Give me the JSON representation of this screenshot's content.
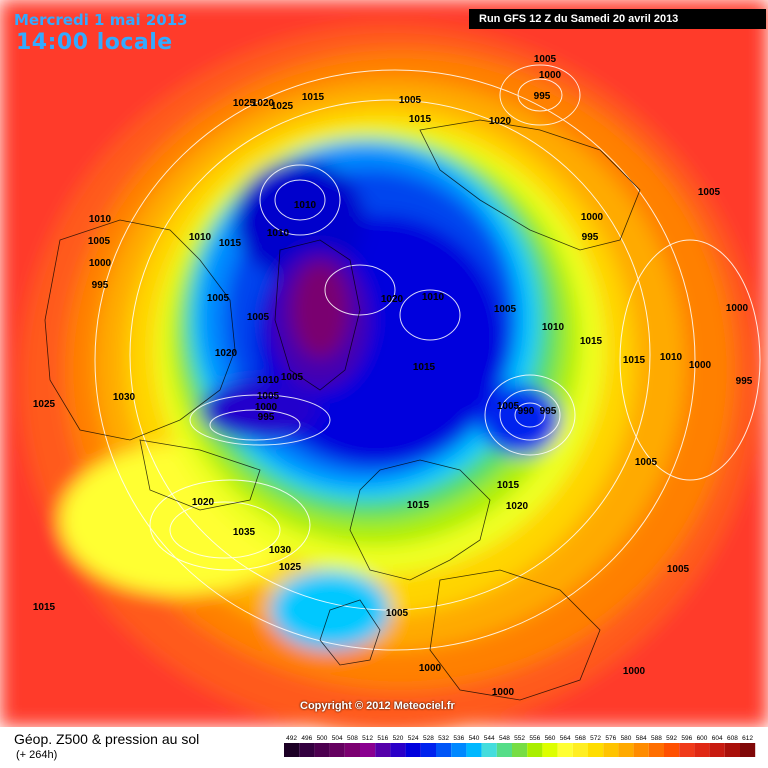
{
  "header": {
    "date": "Mercredi 1 mai 2013",
    "time": "14:00 locale",
    "run": "Run GFS 12 Z du Samedi 20 avril 2013"
  },
  "copyright": "Copyright © 2012 Meteociel.fr",
  "footer": {
    "title": "Géop. Z500 & pression au sol",
    "subtitle": "(+ 264h)"
  },
  "legend": {
    "ticks": [
      "492",
      "496",
      "500",
      "504",
      "508",
      "512",
      "516",
      "520",
      "524",
      "528",
      "532",
      "536",
      "540",
      "544",
      "548",
      "552",
      "556",
      "560",
      "564",
      "568",
      "572",
      "576",
      "580",
      "584",
      "588",
      "592",
      "596",
      "600",
      "604",
      "608",
      "612"
    ],
    "colors": [
      "#1c0025",
      "#33003f",
      "#4c004f",
      "#65005f",
      "#7c0070",
      "#8a0090",
      "#5500aa",
      "#2a00c8",
      "#0000dd",
      "#0022ee",
      "#0055f7",
      "#0088ff",
      "#00b8ff",
      "#44dddd",
      "#55dd88",
      "#77dd44",
      "#aaee00",
      "#ddff00",
      "#ffff33",
      "#ffee22",
      "#ffdd00",
      "#ffc400",
      "#ffaa00",
      "#ff8c00",
      "#ff6e00",
      "#ff5000",
      "#f03a1a",
      "#e02814",
      "#c81b10",
      "#aa100a",
      "#800808"
    ]
  },
  "pressure_labels": [
    "1010",
    "1005",
    "1000",
    "995",
    "1020",
    "1025",
    "1015",
    "1005",
    "1015",
    "1020",
    "1005",
    "1000",
    "995",
    "1010",
    "1010",
    "1015",
    "1010",
    "1005",
    "1005",
    "1025",
    "1030",
    "1020",
    "1010",
    "1005",
    "1000",
    "995",
    "1005",
    "1020",
    "1010",
    "1015",
    "1005",
    "1015",
    "1010",
    "1005",
    "990",
    "995",
    "1005",
    "1000",
    "995",
    "1015",
    "1000",
    "1010",
    "1000",
    "995",
    "1005",
    "1015",
    "1020",
    "1025",
    "1020",
    "1035",
    "1030",
    "1025",
    "1015",
    "1005",
    "1000",
    "1000",
    "1005",
    "1000",
    "1015"
  ]
}
